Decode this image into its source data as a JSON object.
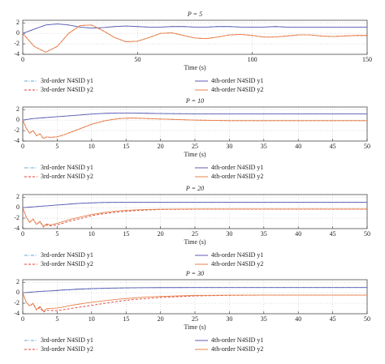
{
  "chart_data": [
    {
      "type": "line",
      "title": "P = 5",
      "x_label": "Time (s)",
      "xlim": [
        0,
        150
      ],
      "xticks": [
        0,
        50,
        100,
        150
      ],
      "ylim": [
        -4,
        2.5
      ],
      "yticks": [
        2,
        0,
        -2,
        -4
      ],
      "grid": true,
      "x": [
        0,
        5,
        10,
        15,
        20,
        25,
        30,
        35,
        40,
        45,
        50,
        55,
        60,
        65,
        70,
        75,
        80,
        85,
        90,
        95,
        100,
        105,
        110,
        115,
        120,
        125,
        130,
        135,
        140,
        145,
        150
      ],
      "series": [
        {
          "name": "3rd-order N4SID y1",
          "color": "#5fa8d8",
          "style": "dash-dot",
          "values": [
            0,
            0.8,
            1.6,
            1.8,
            1.6,
            1.2,
            1.0,
            1.1,
            1.3,
            1.4,
            1.3,
            1.2,
            1.2,
            1.3,
            1.3,
            1.2,
            1.2,
            1.3,
            1.3,
            1.2,
            1.2,
            1.2,
            1.3,
            1.2,
            1.2,
            1.2,
            1.2,
            1.2,
            1.2,
            1.2,
            1.2
          ]
        },
        {
          "name": "3rd-order N4SID y2",
          "color": "#d9423a",
          "style": "dashed",
          "values": [
            0,
            -2.5,
            -3.6,
            -2.5,
            0,
            1.5,
            1.6,
            0.5,
            -0.8,
            -1.6,
            -1.5,
            -0.8,
            0,
            0.1,
            -0.4,
            -0.9,
            -1.0,
            -0.7,
            -0.3,
            -0.2,
            -0.4,
            -0.7,
            -0.7,
            -0.5,
            -0.3,
            -0.3,
            -0.5,
            -0.6,
            -0.5,
            -0.4,
            -0.4
          ]
        },
        {
          "name": "4th-order N4SID y1",
          "color": "#5f5bb0",
          "style": "solid",
          "values": [
            0,
            0.8,
            1.6,
            1.8,
            1.6,
            1.2,
            1.0,
            1.1,
            1.3,
            1.4,
            1.3,
            1.2,
            1.2,
            1.3,
            1.3,
            1.2,
            1.2,
            1.3,
            1.3,
            1.2,
            1.2,
            1.2,
            1.3,
            1.2,
            1.2,
            1.2,
            1.2,
            1.2,
            1.2,
            1.2,
            1.2
          ]
        },
        {
          "name": "4th-order N4SID y2",
          "color": "#e8824a",
          "style": "solid",
          "values": [
            0,
            -2.5,
            -3.6,
            -2.5,
            0,
            1.5,
            1.6,
            0.5,
            -0.8,
            -1.6,
            -1.5,
            -0.8,
            0,
            0.1,
            -0.4,
            -0.9,
            -1.0,
            -0.7,
            -0.3,
            -0.2,
            -0.4,
            -0.7,
            -0.7,
            -0.5,
            -0.3,
            -0.3,
            -0.5,
            -0.6,
            -0.5,
            -0.4,
            -0.4
          ]
        }
      ]
    },
    {
      "type": "line",
      "title": "P = 10",
      "x_label": "Time (s)",
      "xlim": [
        0,
        50
      ],
      "xticks": [
        0,
        5,
        10,
        15,
        20,
        25,
        30,
        35,
        40,
        45,
        50
      ],
      "ylim": [
        -4,
        2.5
      ],
      "yticks": [
        2,
        0,
        -2,
        -4
      ],
      "grid": true,
      "x": [
        0,
        0.5,
        1,
        1.5,
        2,
        2.5,
        3,
        3.5,
        4,
        5,
        6,
        7,
        8,
        9,
        10,
        12,
        14,
        16,
        18,
        20,
        25,
        30,
        35,
        40,
        45,
        50
      ],
      "series": [
        {
          "name": "3rd-order N4SID y1",
          "color": "#5fa8d8",
          "style": "dash-dot",
          "values": [
            0,
            0.1,
            0.2,
            0.3,
            0.35,
            0.4,
            0.45,
            0.5,
            0.55,
            0.65,
            0.75,
            0.85,
            0.95,
            1.05,
            1.15,
            1.28,
            1.33,
            1.33,
            1.3,
            1.25,
            1.2,
            1.2,
            1.2,
            1.2,
            1.2,
            1.2
          ]
        },
        {
          "name": "3rd-order N4SID y2",
          "color": "#d9423a",
          "style": "dashed",
          "values": [
            0,
            -1.5,
            -2.5,
            -2,
            -3,
            -2.6,
            -3.5,
            -3.2,
            -3.3,
            -3.2,
            -2.8,
            -2.3,
            -1.8,
            -1.3,
            -0.8,
            -0.1,
            0.3,
            0.4,
            0.3,
            0.2,
            0,
            -0.1,
            -0.1,
            -0.1,
            -0.1,
            -0.1
          ]
        },
        {
          "name": "4th-order N4SID y1",
          "color": "#5f5bb0",
          "style": "solid",
          "values": [
            0,
            0.1,
            0.2,
            0.3,
            0.35,
            0.4,
            0.45,
            0.5,
            0.55,
            0.65,
            0.75,
            0.85,
            0.95,
            1.05,
            1.15,
            1.3,
            1.35,
            1.35,
            1.3,
            1.25,
            1.2,
            1.2,
            1.2,
            1.2,
            1.2,
            1.2
          ]
        },
        {
          "name": "4th-order N4SID y2",
          "color": "#e8824a",
          "style": "solid",
          "values": [
            0,
            -1.5,
            -2.5,
            -2,
            -3,
            -2.6,
            -3.5,
            -3.2,
            -3.3,
            -3.2,
            -2.8,
            -2.3,
            -1.8,
            -1.3,
            -0.8,
            -0.1,
            0.3,
            0.4,
            0.3,
            0.2,
            0,
            -0.1,
            -0.1,
            -0.1,
            -0.1,
            -0.1
          ]
        }
      ]
    },
    {
      "type": "line",
      "title": "P = 20",
      "x_label": "Time (s)",
      "xlim": [
        0,
        50
      ],
      "xticks": [
        0,
        5,
        10,
        15,
        20,
        25,
        30,
        35,
        40,
        45,
        50
      ],
      "ylim": [
        -4,
        2.5
      ],
      "yticks": [
        2,
        0,
        -2,
        -4
      ],
      "grid": true,
      "x": [
        0,
        0.5,
        1,
        1.5,
        2,
        2.5,
        3,
        3.5,
        4,
        5,
        6,
        7,
        8,
        9,
        10,
        12,
        14,
        16,
        18,
        20,
        25,
        30,
        35,
        40,
        45,
        50
      ],
      "series": [
        {
          "name": "3rd-order N4SID y1",
          "color": "#5fa8d8",
          "style": "dash-dot",
          "values": [
            0,
            0.05,
            0.1,
            0.15,
            0.2,
            0.25,
            0.3,
            0.35,
            0.4,
            0.5,
            0.6,
            0.7,
            0.78,
            0.85,
            0.9,
            0.97,
            1.0,
            1.0,
            1.0,
            1.0,
            1.0,
            1.0,
            1.0,
            1.0,
            1.0,
            1.0
          ]
        },
        {
          "name": "3rd-order N4SID y2",
          "color": "#d9423a",
          "style": "dashed",
          "values": [
            0,
            -1.8,
            -2.8,
            -2.2,
            -3.2,
            -2.7,
            -3.7,
            -3.3,
            -3.5,
            -3.3,
            -2.9,
            -2.5,
            -2.2,
            -1.9,
            -1.5,
            -1.1,
            -0.8,
            -0.6,
            -0.45,
            -0.35,
            -0.3,
            -0.3,
            -0.3,
            -0.3,
            -0.3,
            -0.3
          ]
        },
        {
          "name": "4th-order N4SID y1",
          "color": "#5f5bb0",
          "style": "solid",
          "values": [
            0,
            0.05,
            0.1,
            0.15,
            0.2,
            0.25,
            0.3,
            0.35,
            0.4,
            0.5,
            0.6,
            0.7,
            0.8,
            0.87,
            0.93,
            1.0,
            1.02,
            1.02,
            1.02,
            1.02,
            1.02,
            1.02,
            1.02,
            1.02,
            1.02,
            1.02
          ]
        },
        {
          "name": "4th-order N4SID y2",
          "color": "#e8824a",
          "style": "solid",
          "values": [
            0,
            -1.8,
            -2.8,
            -2.2,
            -3.2,
            -2.6,
            -3.6,
            -3.1,
            -3.3,
            -3.0,
            -2.6,
            -2.2,
            -1.9,
            -1.6,
            -1.3,
            -0.9,
            -0.6,
            -0.45,
            -0.35,
            -0.3,
            -0.25,
            -0.25,
            -0.25,
            -0.25,
            -0.25,
            -0.25
          ]
        }
      ]
    },
    {
      "type": "line",
      "title": "P = 30",
      "x_label": "Time (s)",
      "xlim": [
        0,
        50
      ],
      "xticks": [
        0,
        5,
        10,
        15,
        20,
        25,
        30,
        35,
        40,
        45,
        50
      ],
      "ylim": [
        -4,
        2.5
      ],
      "yticks": [
        2,
        0,
        -2,
        -4
      ],
      "grid": true,
      "x": [
        0,
        0.5,
        1,
        1.5,
        2,
        2.5,
        3,
        3.5,
        4,
        5,
        6,
        7,
        8,
        9,
        10,
        12,
        14,
        16,
        18,
        20,
        25,
        30,
        35,
        40,
        45,
        50
      ],
      "series": [
        {
          "name": "3rd-order N4SID y1",
          "color": "#5fa8d8",
          "style": "dash-dot",
          "values": [
            0,
            0.05,
            0.1,
            0.15,
            0.2,
            0.24,
            0.28,
            0.31,
            0.34,
            0.42,
            0.5,
            0.57,
            0.64,
            0.7,
            0.75,
            0.83,
            0.89,
            0.93,
            0.96,
            0.98,
            1.0,
            1.0,
            1.0,
            1.0,
            1.0,
            1.0
          ]
        },
        {
          "name": "3rd-order N4SID y2",
          "color": "#d9423a",
          "style": "dashed",
          "values": [
            0,
            -1.8,
            -2.5,
            -2.1,
            -3.3,
            -2.8,
            -3.7,
            -3.3,
            -3.4,
            -3.4,
            -3.2,
            -3.0,
            -2.8,
            -2.6,
            -2.4,
            -2.0,
            -1.6,
            -1.3,
            -1.1,
            -0.9,
            -0.6,
            -0.5,
            -0.45,
            -0.45,
            -0.45,
            -0.45
          ]
        },
        {
          "name": "4th-order N4SID y1",
          "color": "#5f5bb0",
          "style": "solid",
          "values": [
            0,
            0.05,
            0.1,
            0.15,
            0.2,
            0.25,
            0.3,
            0.33,
            0.36,
            0.45,
            0.55,
            0.62,
            0.7,
            0.75,
            0.8,
            0.88,
            0.93,
            0.96,
            0.98,
            0.99,
            1.0,
            1.0,
            1.0,
            1.0,
            1.0,
            1.0
          ]
        },
        {
          "name": "4th-order N4SID y2",
          "color": "#e8824a",
          "style": "solid",
          "values": [
            0,
            -1.8,
            -2.5,
            -2,
            -3.2,
            -2.6,
            -3.5,
            -3.0,
            -3.0,
            -2.9,
            -2.7,
            -2.4,
            -2.2,
            -2.0,
            -1.8,
            -1.5,
            -1.2,
            -1.0,
            -0.8,
            -0.7,
            -0.5,
            -0.45,
            -0.45,
            -0.45,
            -0.45,
            -0.45
          ]
        }
      ]
    }
  ]
}
